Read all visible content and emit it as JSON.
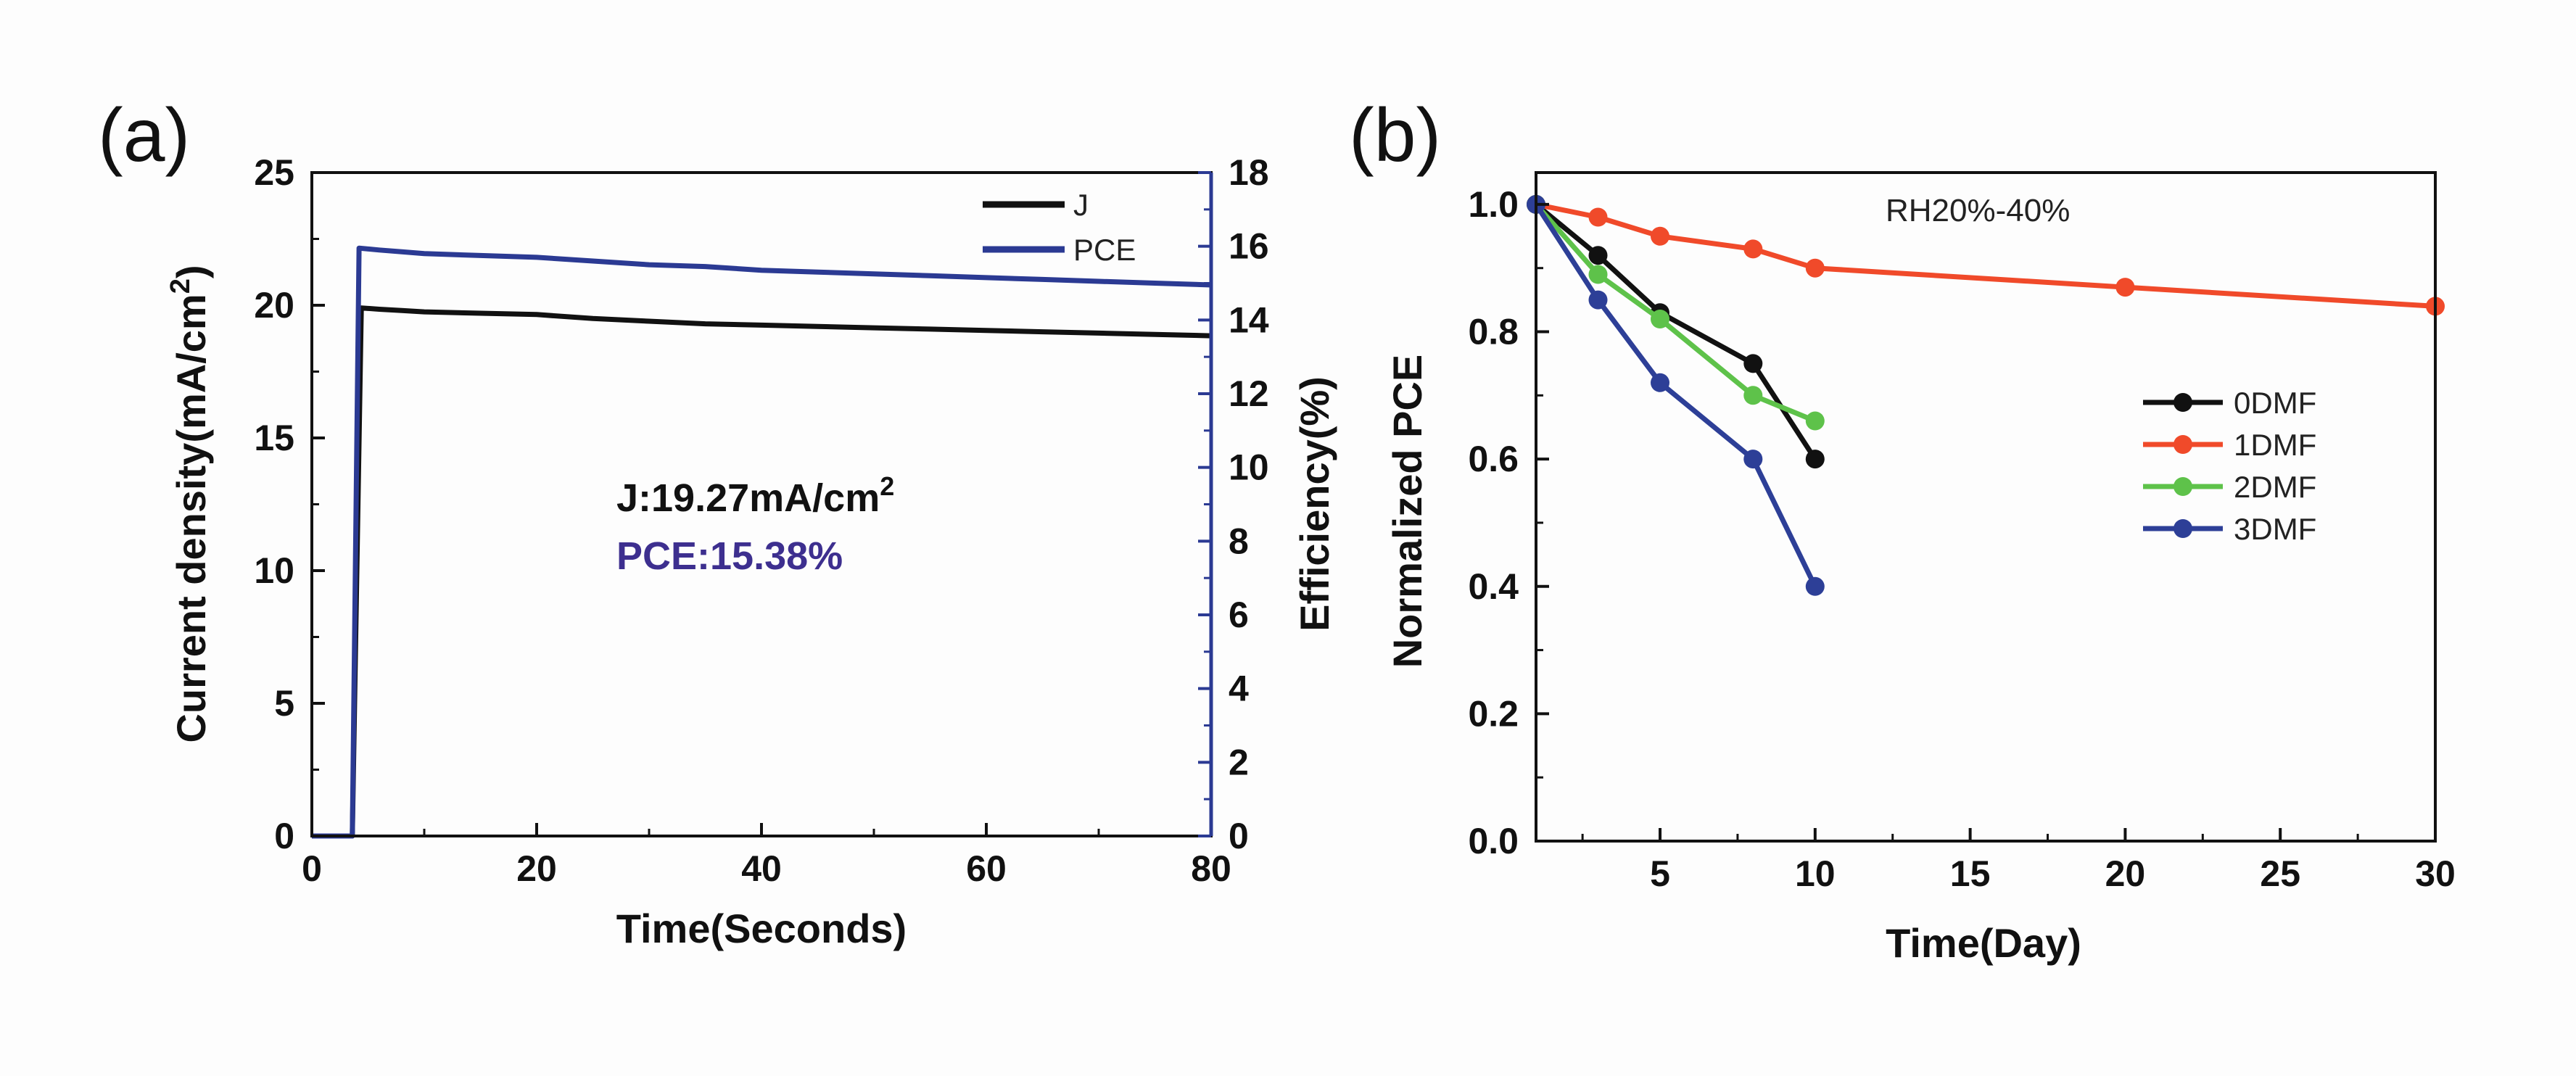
{
  "colors": {
    "background": "#fdfdfd",
    "black": "#111111",
    "navy": "#2b3a93",
    "purple_text": "#3d2f8f",
    "red": "#f04a2a",
    "green": "#5ec24a",
    "blue": "#2d3f97"
  },
  "chart_data": [
    {
      "panel": "(a)",
      "type": "line",
      "xlabel": "Time(Seconds)",
      "ylabel_left": "Current density(mA/cm",
      "ylabel_left_sup": "2",
      "ylabel_left_end": ")",
      "ylabel_right": "Efficiency(%)",
      "xlim": [
        0,
        80
      ],
      "ylim_left": [
        0,
        25
      ],
      "ylim_right": [
        0,
        18
      ],
      "x_ticks": [
        "0",
        "20",
        "40",
        "60",
        "80"
      ],
      "y_left_ticks": [
        "0",
        "5",
        "10",
        "15",
        "20",
        "25"
      ],
      "y_right_ticks": [
        "0",
        "2",
        "4",
        "6",
        "8",
        "10",
        "12",
        "14",
        "16",
        "18"
      ],
      "annotation_j": "J:19.27mA/cm",
      "annotation_j_sup": "2",
      "annotation_pce": "PCE:15.38%",
      "series": [
        {
          "name": "J",
          "axis": "left",
          "color": "#111111",
          "x": [
            0,
            2.8,
            3.6,
            4.4,
            6,
            8,
            10,
            15,
            20,
            25,
            30,
            35,
            40,
            45,
            50,
            55,
            60,
            65,
            70,
            75,
            80
          ],
          "y": [
            0,
            0,
            0,
            19.9,
            19.85,
            19.8,
            19.75,
            19.7,
            19.65,
            19.5,
            19.4,
            19.3,
            19.25,
            19.2,
            19.15,
            19.1,
            19.05,
            19.0,
            18.95,
            18.9,
            18.85
          ]
        },
        {
          "name": "PCE",
          "axis": "right",
          "color": "#2b3a93",
          "x": [
            0,
            2.8,
            3.6,
            4.2,
            6,
            8,
            10,
            15,
            20,
            25,
            30,
            35,
            40,
            45,
            50,
            55,
            60,
            65,
            70,
            75,
            80
          ],
          "y": [
            0,
            0,
            0,
            15.95,
            15.9,
            15.85,
            15.8,
            15.75,
            15.7,
            15.6,
            15.5,
            15.45,
            15.35,
            15.3,
            15.25,
            15.2,
            15.15,
            15.1,
            15.05,
            15.0,
            14.95
          ]
        }
      ]
    },
    {
      "panel": "(b)",
      "type": "line",
      "xlabel": "Time(Day)",
      "ylabel": "Normalized PCE",
      "xlim": [
        1,
        30
      ],
      "ylim": [
        0,
        1.05
      ],
      "x_ticks": [
        "5",
        "10",
        "15",
        "20",
        "25",
        "30"
      ],
      "y_ticks": [
        "0.0",
        "0.2",
        "0.4",
        "0.6",
        "0.8",
        "1.0"
      ],
      "annotation": "RH20%-40%",
      "series": [
        {
          "name": "0DMF",
          "color": "#111111",
          "x": [
            1,
            3,
            5,
            8,
            10
          ],
          "y": [
            1.0,
            0.92,
            0.83,
            0.75,
            0.6
          ]
        },
        {
          "name": "1DMF",
          "color": "#f04a2a",
          "x": [
            1,
            3,
            5,
            8,
            10,
            20,
            30
          ],
          "y": [
            1.0,
            0.98,
            0.95,
            0.93,
            0.9,
            0.87,
            0.84
          ]
        },
        {
          "name": "2DMF",
          "color": "#5ec24a",
          "x": [
            1,
            3,
            5,
            8,
            10
          ],
          "y": [
            1.0,
            0.89,
            0.82,
            0.7,
            0.66
          ]
        },
        {
          "name": "3DMF",
          "color": "#2d3f97",
          "x": [
            1,
            3,
            5,
            8,
            10
          ],
          "y": [
            1.0,
            0.85,
            0.72,
            0.6,
            0.4
          ]
        }
      ]
    }
  ]
}
